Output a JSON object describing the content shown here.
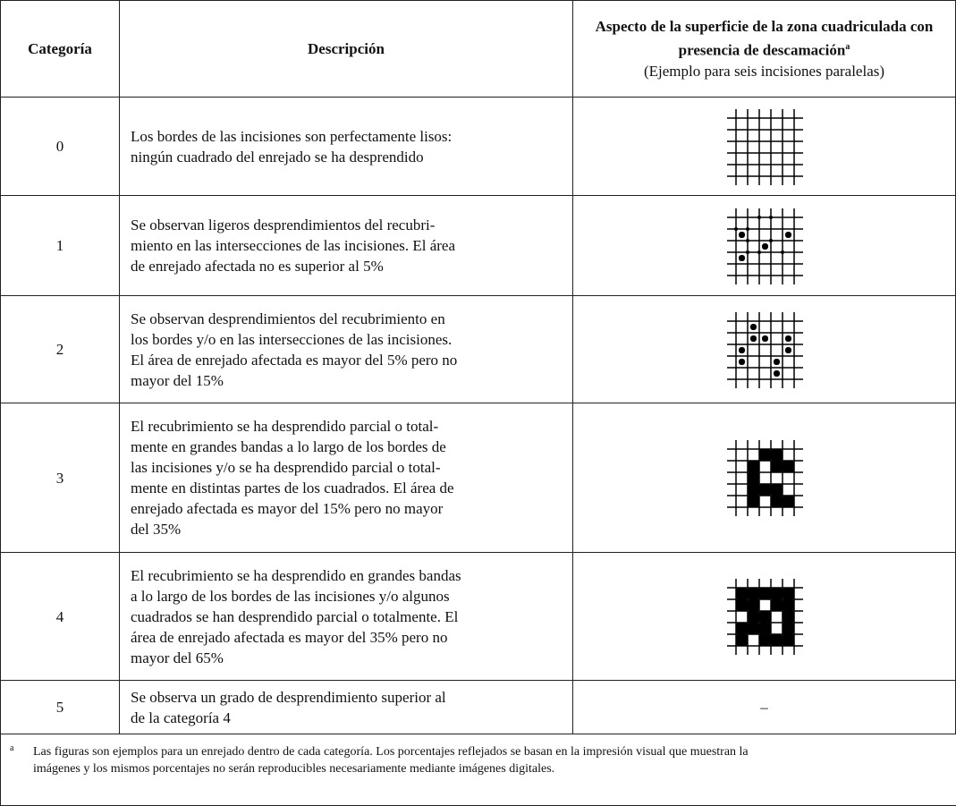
{
  "header": {
    "col0": "Categoría",
    "col1": "Descripción",
    "col2_title": "Aspecto de la superficie de la zona cuadriculada con presencia de descamación",
    "col2_sup": "a",
    "col2_subtitle": "(Ejemplo para seis incisiones paralelas)"
  },
  "rows": [
    {
      "category": "0",
      "description": [
        "Los bordes de las incisiones son perfectamente lisos:",
        "ningún cuadrado del enrejado se ha desprendido"
      ]
    },
    {
      "category": "1",
      "description": [
        "Se observan ligeros desprendimientos del recubri-",
        "miento en las intersecciones de las incisiones. El área",
        "de enrejado afectada no es superior al 5%"
      ]
    },
    {
      "category": "2",
      "description": [
        "Se observan desprendimientos del recubrimiento en",
        "los bordes y/o en las intersecciones de las incisiones.",
        "El área de enrejado afectada es mayor del 5% pero no",
        "mayor del 15%"
      ]
    },
    {
      "category": "3",
      "description": [
        "El recubrimiento se ha desprendido parcial o total-",
        "mente en grandes bandas a lo largo de los bordes de",
        "las incisiones y/o se ha desprendido parcial o total-",
        "mente en distintas partes de los cuadrados. El área de",
        "enrejado afectada es mayor del 15% pero no mayor",
        "del 35%"
      ]
    },
    {
      "category": "4",
      "description": [
        "El recubrimiento se ha desprendido en grandes bandas",
        "a lo largo de los bordes de las incisiones y/o algunos",
        "cuadrados se han desprendido parcial o totalmente. El",
        "área de enrejado afectada es mayor del 35% pero no",
        "mayor del 65%"
      ]
    },
    {
      "category": "5",
      "description": [
        "Se observa un grado de desprendimiento superior al",
        "de la categoría 4"
      ],
      "aspect": "–"
    }
  ],
  "footnote": {
    "mark": "a",
    "lines": [
      "Las figuras son ejemplos para un enrejado dentro de cada categoría. Los porcentajes reflejados se basan en la impresión visual que muestran la",
      "imágenes y los mismos porcentajes no serán reproducibles necesariamente mediante imágenes digitales."
    ]
  }
}
